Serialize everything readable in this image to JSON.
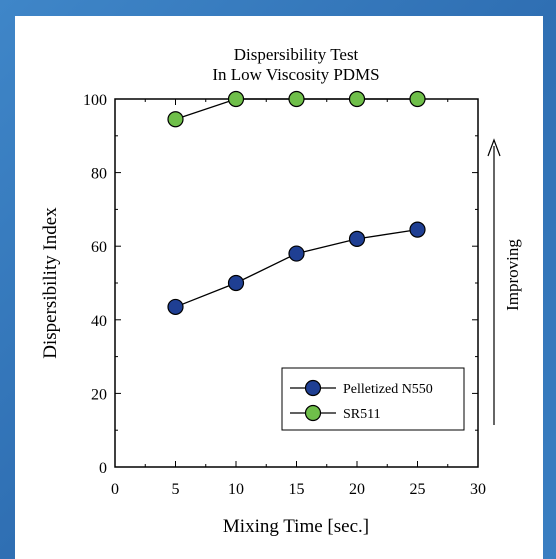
{
  "chart_data": {
    "type": "line",
    "title": [
      "Dispersibility Test",
      "In Low Viscosity PDMS"
    ],
    "xlabel": "Mixing Time [sec.]",
    "ylabel": "Dispersibility Index",
    "xlim": [
      0,
      30
    ],
    "ylim": [
      0,
      100
    ],
    "x_ticks": [
      0,
      5,
      10,
      15,
      20,
      25,
      30
    ],
    "y_ticks": [
      0,
      20,
      40,
      60,
      80,
      100
    ],
    "grid": false,
    "legend_position": "bottom-right",
    "annotation": "Improving",
    "series": [
      {
        "name": "Pelletized N550",
        "color": "#1f3f93",
        "x": [
          5,
          10,
          15,
          20,
          25
        ],
        "y": [
          43.5,
          50,
          58,
          62,
          64.5
        ]
      },
      {
        "name": "SR511",
        "color": "#6fbf4a",
        "x": [
          5,
          10,
          15,
          20,
          25
        ],
        "y": [
          94.5,
          100,
          100,
          100,
          100
        ]
      }
    ]
  }
}
